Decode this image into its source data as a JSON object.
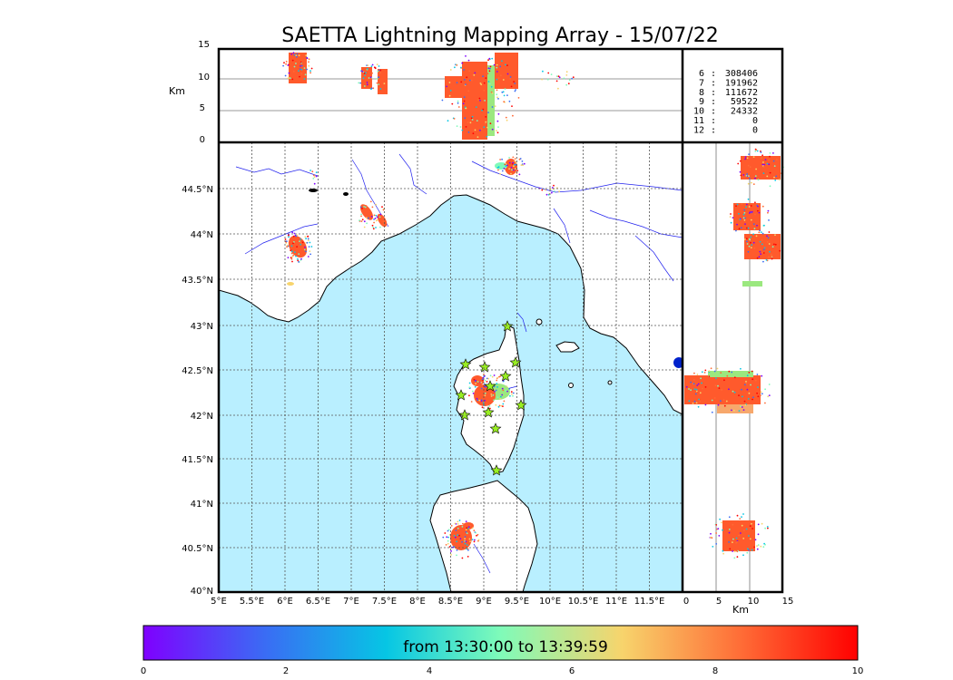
{
  "title": "SAETTA Lightning Mapping Array - 15/07/22",
  "altitude_panel": {
    "unit": "Km",
    "y_ticks": [
      "15",
      "10",
      "5",
      "0"
    ]
  },
  "side_panel": {
    "unit": "Km",
    "x_ticks": [
      "0",
      "5",
      "10",
      "15"
    ]
  },
  "map": {
    "lon_ticks": [
      "5°E",
      "5.5°E",
      "6°E",
      "6.5°E",
      "7°E",
      "7.5°E",
      "8°E",
      "8.5°E",
      "9°E",
      "9.5°E",
      "10°E",
      "10.5°E",
      "11°E",
      "11.5°E"
    ],
    "lat_ticks": [
      "44.5°N",
      "44°N",
      "43.5°N",
      "43°N",
      "42.5°N",
      "42°N",
      "41.5°N",
      "41°N",
      "40.5°N",
      "40°N"
    ],
    "colors": {
      "sea": "#b9efff",
      "land": "#ffffff",
      "rivers": "#2222ee",
      "station": "#99ee22"
    }
  },
  "station_counts": [
    {
      "stations": "6",
      "count": "308406",
      "color": "#000000"
    },
    {
      "stations": "7",
      "count": "191962",
      "color": "#ee0000"
    },
    {
      "stations": "8",
      "count": "111672",
      "color": "#000000"
    },
    {
      "stations": "9",
      "count": "59522",
      "color": "#000000"
    },
    {
      "stations": "10",
      "count": "24332",
      "color": "#000000"
    },
    {
      "stations": "11",
      "count": "0",
      "color": "#000000"
    },
    {
      "stations": "12",
      "count": "0",
      "color": "#000000"
    }
  ],
  "colorbar": {
    "label": "from 13:30:00 to 13:39:59",
    "ticks": [
      "0",
      "2",
      "4",
      "6",
      "8",
      "10"
    ],
    "colors": [
      "#7f00ff",
      "#3a6cf4",
      "#06c6e4",
      "#7ffbb9",
      "#f7d46c",
      "#ff6a35",
      "#ff0000"
    ]
  }
}
